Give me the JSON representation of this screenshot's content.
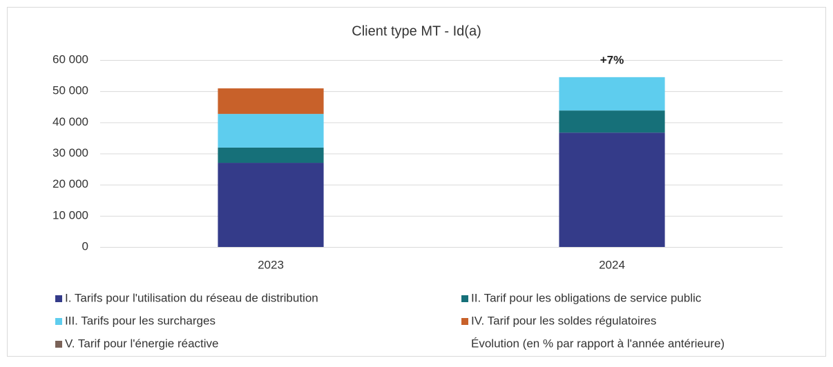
{
  "chart_data": {
    "type": "stacked_bar",
    "title": "Client type MT - Id(a)",
    "categories": [
      "2023",
      "2024"
    ],
    "series": [
      {
        "name": "I. Tarifs pour l'utilisation du réseau de distribution",
        "color": "#343b89",
        "values": [
          27000,
          36700
        ]
      },
      {
        "name": "II. Tarif pour les obligations de service public",
        "color": "#167079",
        "values": [
          4900,
          7100
        ]
      },
      {
        "name": "III. Tarifs pour les surcharges",
        "color": "#5ecdee",
        "values": [
          10800,
          10700
        ]
      },
      {
        "name": "IV. Tarif pour les soldes régulatoires",
        "color": "#c8612a",
        "values": [
          8200,
          0
        ]
      },
      {
        "name": "V. Tarif pour l'énergie réactive",
        "color": "#7a6258",
        "values": [
          0,
          0
        ]
      },
      {
        "name": "Évolution (en % par rapport à l'année antérieure)",
        "type": "label",
        "values": [
          null,
          7
        ],
        "value_labels": [
          null,
          "+7%"
        ]
      }
    ],
    "ylim": [
      0,
      60000
    ],
    "yticks": [
      0,
      {
        "value": 10000,
        "label": "10 000"
      },
      {
        "value": 20000,
        "label": "20 000"
      },
      {
        "value": 30000,
        "label": "30 000"
      },
      {
        "value": 40000,
        "label": "40 000"
      },
      {
        "value": 50000,
        "label": "50 000"
      },
      {
        "value": 60000,
        "label": "60 000"
      }
    ],
    "grid": true
  }
}
